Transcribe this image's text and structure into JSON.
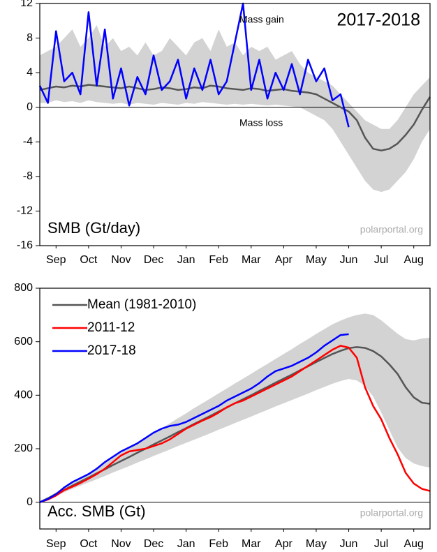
{
  "chart_data": [
    {
      "type": "line",
      "title": "2017-2018",
      "ylabel": "SMB (Gt/day)",
      "source": "polarportal.org",
      "annotations": [
        "Mass gain",
        "Mass loss"
      ],
      "x": [
        0,
        0.25,
        0.5,
        0.75,
        1,
        1.25,
        1.5,
        1.75,
        2,
        2.25,
        2.5,
        2.75,
        3,
        3.25,
        3.5,
        3.75,
        4,
        4.25,
        4.5,
        4.75,
        5,
        5.25,
        5.5,
        5.75,
        6,
        6.25,
        6.5,
        6.75,
        7,
        7.25,
        7.5,
        7.75,
        8,
        8.25,
        8.5,
        8.75,
        9,
        9.25,
        9.5,
        9.75,
        10,
        10.25,
        10.5,
        10.75,
        11,
        11.25,
        11.5,
        11.75,
        12
      ],
      "xlim": [
        0,
        12
      ],
      "xticks": [
        {
          "value": 0.5,
          "label": "Sep"
        },
        {
          "value": 1.5,
          "label": "Oct"
        },
        {
          "value": 2.5,
          "label": "Nov"
        },
        {
          "value": 3.5,
          "label": "Dec"
        },
        {
          "value": 4.5,
          "label": "Jan"
        },
        {
          "value": 5.5,
          "label": "Feb"
        },
        {
          "value": 6.5,
          "label": "Mar"
        },
        {
          "value": 7.5,
          "label": "Apr"
        },
        {
          "value": 8.5,
          "label": "May"
        },
        {
          "value": 9.5,
          "label": "Jun"
        },
        {
          "value": 10.5,
          "label": "Jul"
        },
        {
          "value": 11.5,
          "label": "Aug"
        }
      ],
      "ylim": [
        -16,
        12
      ],
      "yticks": [
        12,
        8,
        4,
        0,
        -4,
        -8,
        -12,
        -16
      ],
      "band": {
        "color": "#d3d3d3",
        "upper": [
          6,
          6.5,
          7,
          8,
          9,
          7,
          8,
          9.5,
          7,
          8,
          6.5,
          7,
          6,
          7.5,
          6,
          6.5,
          8,
          7,
          6,
          7.5,
          8,
          6.5,
          9,
          7,
          7.5,
          6,
          7,
          6.5,
          7,
          5.5,
          6,
          6.5,
          5,
          4,
          3.5,
          3,
          2.5,
          1.5,
          0.5,
          -0.5,
          -1.5,
          -2,
          -2.5,
          -2.5,
          -1.5,
          0,
          1.5,
          2.5,
          3.5
        ],
        "lower": [
          0.5,
          0.5,
          0.8,
          0.6,
          0.7,
          0.5,
          0.8,
          0.6,
          0.5,
          0.4,
          0.5,
          0.3,
          0.5,
          0.4,
          0.3,
          0.5,
          0.4,
          0.3,
          0.5,
          0.4,
          0.6,
          0.5,
          0.4,
          0.3,
          0.4,
          0.3,
          0.4,
          0.3,
          0.2,
          0.3,
          0.2,
          0.1,
          0,
          -0.5,
          -1,
          -1.5,
          -2.5,
          -4,
          -5.5,
          -7,
          -8.5,
          -9.5,
          -9.8,
          -9.5,
          -8.5,
          -7.5,
          -6,
          -4,
          -2.5
        ]
      },
      "series": [
        {
          "color": "#555555",
          "values": [
            2,
            2.2,
            2.4,
            2.3,
            2.5,
            2.4,
            2.6,
            2.5,
            2.4,
            2.3,
            2.2,
            2.4,
            2.2,
            2.0,
            2.1,
            2.3,
            2.2,
            2.0,
            2.1,
            2.3,
            2.2,
            2.5,
            2.4,
            2.2,
            2.1,
            2.0,
            2.2,
            2.1,
            1.9,
            2.0,
            2.1,
            1.9,
            1.8,
            1.7,
            1.5,
            1.0,
            0.5,
            0,
            -0.5,
            -1.5,
            -3.5,
            -4.8,
            -5.0,
            -4.8,
            -4.2,
            -3.2,
            -2.0,
            -0.3,
            1.2
          ]
        },
        {
          "color": "#0000ff",
          "values": [
            2.5,
            0.5,
            8.8,
            3.0,
            4.0,
            1.5,
            11.0,
            2.5,
            9.0,
            1.0,
            4.5,
            0.2,
            3.5,
            1.5,
            6.0,
            2.0,
            3.0,
            5.5,
            1.0,
            4.5,
            2.0,
            5.5,
            1.5,
            3.0,
            7.5,
            12.0,
            2.0,
            5.5,
            1.0,
            4.0,
            2.0,
            5.0,
            1.5,
            5.5,
            3.0,
            4.5,
            0.8,
            1.5,
            -2.3,
            null,
            null,
            null,
            null,
            null,
            null,
            null,
            null,
            null,
            null
          ]
        }
      ]
    },
    {
      "type": "line",
      "ylabel": "Acc. SMB (Gt)",
      "source": "polarportal.org",
      "legend": "upper left",
      "x": [
        0,
        0.25,
        0.5,
        0.75,
        1,
        1.25,
        1.5,
        1.75,
        2,
        2.25,
        2.5,
        2.75,
        3,
        3.25,
        3.5,
        3.75,
        4,
        4.25,
        4.5,
        4.75,
        5,
        5.25,
        5.5,
        5.75,
        6,
        6.25,
        6.5,
        6.75,
        7,
        7.25,
        7.5,
        7.75,
        8,
        8.25,
        8.5,
        8.75,
        9,
        9.25,
        9.5,
        9.75,
        10,
        10.25,
        10.5,
        10.75,
        11,
        11.25,
        11.5,
        11.75,
        12
      ],
      "xlim": [
        0,
        12
      ],
      "xticks": [
        {
          "value": 0.5,
          "label": "Sep"
        },
        {
          "value": 1.5,
          "label": "Oct"
        },
        {
          "value": 2.5,
          "label": "Nov"
        },
        {
          "value": 3.5,
          "label": "Dec"
        },
        {
          "value": 4.5,
          "label": "Jan"
        },
        {
          "value": 5.5,
          "label": "Feb"
        },
        {
          "value": 6.5,
          "label": "Mar"
        },
        {
          "value": 7.5,
          "label": "Apr"
        },
        {
          "value": 8.5,
          "label": "May"
        },
        {
          "value": 9.5,
          "label": "Jun"
        },
        {
          "value": 10.5,
          "label": "Jul"
        },
        {
          "value": 11.5,
          "label": "Aug"
        }
      ],
      "ylim": [
        -100,
        800
      ],
      "yticks": [
        0,
        200,
        400,
        600,
        800
      ],
      "band": {
        "color": "#d3d3d3",
        "upper": [
          0,
          18,
          37,
          55,
          74,
          92,
          110,
          130,
          148,
          167,
          185,
          203,
          222,
          240,
          259,
          277,
          295,
          314,
          332,
          352,
          370,
          388,
          407,
          425,
          444,
          462,
          480,
          499,
          517,
          536,
          554,
          572,
          592,
          610,
          629,
          647,
          665,
          679,
          691,
          700,
          705,
          700,
          680,
          655,
          630,
          610,
          605,
          612,
          615
        ],
        "lower": [
          0,
          12,
          25,
          37,
          50,
          62,
          74,
          86,
          98,
          111,
          123,
          135,
          148,
          160,
          173,
          185,
          197,
          210,
          222,
          234,
          246,
          258,
          271,
          283,
          296,
          308,
          320,
          333,
          345,
          358,
          370,
          382,
          394,
          406,
          419,
          431,
          443,
          453,
          461,
          455,
          435,
          395,
          335,
          270,
          205,
          165,
          145,
          135,
          130
        ]
      },
      "series": [
        {
          "name": "Mean (1981-2010)",
          "color": "#555555",
          "values": [
            0,
            15,
            31,
            46,
            62,
            77,
            92,
            108,
            123,
            139,
            154,
            169,
            185,
            200,
            216,
            231,
            246,
            262,
            277,
            293,
            308,
            323,
            339,
            354,
            370,
            385,
            400,
            416,
            431,
            447,
            462,
            477,
            493,
            508,
            524,
            539,
            554,
            566,
            576,
            580,
            577,
            565,
            545,
            515,
            480,
            430,
            392,
            372,
            368
          ]
        },
        {
          "name": "2011-12",
          "color": "#ff0000",
          "values": [
            0,
            10,
            25,
            45,
            58,
            72,
            88,
            105,
            125,
            150,
            175,
            190,
            195,
            200,
            210,
            220,
            235,
            255,
            275,
            290,
            305,
            318,
            335,
            355,
            370,
            380,
            395,
            410,
            425,
            440,
            455,
            470,
            490,
            510,
            530,
            550,
            570,
            585,
            578,
            540,
            430,
            360,
            310,
            240,
            180,
            110,
            70,
            50,
            42
          ]
        },
        {
          "name": "2017-18",
          "color": "#0000ff",
          "values": [
            0,
            12,
            30,
            55,
            75,
            90,
            105,
            125,
            150,
            170,
            190,
            205,
            220,
            240,
            260,
            275,
            285,
            290,
            300,
            315,
            330,
            345,
            360,
            380,
            395,
            410,
            425,
            445,
            470,
            490,
            500,
            510,
            525,
            540,
            560,
            585,
            605,
            625,
            628,
            null,
            null,
            null,
            null,
            null,
            null,
            null,
            null,
            null,
            null
          ]
        }
      ]
    }
  ]
}
